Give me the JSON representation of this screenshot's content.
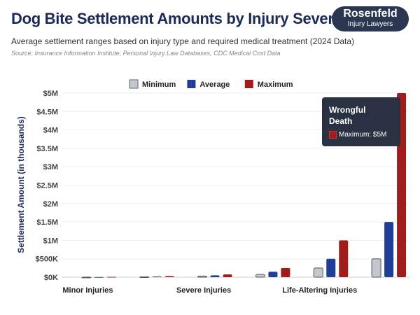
{
  "header": {
    "title": "Dog Bite Settlement Amounts by Injury Severity",
    "subtitle": "Average settlement ranges based on injury type and required medical treatment (2024 Data)",
    "source": "Source: Insurance Information Institute, Personal Injury Law Databases, CDC Medical Cost Data"
  },
  "logo": {
    "line1": "Rosenfeld",
    "line2": "Injury Lawyers"
  },
  "tooltip": {
    "title": "Wrongful Death",
    "row": "Maximum: $5M"
  },
  "chart_data": {
    "type": "bar",
    "ylabel": "Settlement Amount (in thousands)",
    "xlabel": "",
    "ylim": [
      0,
      5000000
    ],
    "yticks": [
      "$0K",
      "$500K",
      "$1M",
      "$1.5M",
      "$2M",
      "$2.5M",
      "$3M",
      "$3.5M",
      "$4M",
      "$4.5M",
      "$5M"
    ],
    "categories": [
      "Minor Injuries",
      "",
      "Severe Injuries",
      "",
      "Life-Altering Injuries",
      "Wrongful Death"
    ],
    "xtick_labels": [
      "Minor Injuries",
      "Severe Injuries",
      "Life-Altering Injuries"
    ],
    "series": [
      {
        "name": "Minimum",
        "color": "#c3c7d0",
        "values": [
          2000,
          10000,
          30000,
          75000,
          250000,
          500000
        ]
      },
      {
        "name": "Average",
        "color": "#1f3f94",
        "values": [
          5000,
          20000,
          50000,
          150000,
          500000,
          1500000
        ]
      },
      {
        "name": "Maximum",
        "color": "#a11d1d",
        "values": [
          10000,
          30000,
          75000,
          250000,
          1000000,
          5000000
        ]
      }
    ],
    "legend": "top-center",
    "grid": true
  }
}
